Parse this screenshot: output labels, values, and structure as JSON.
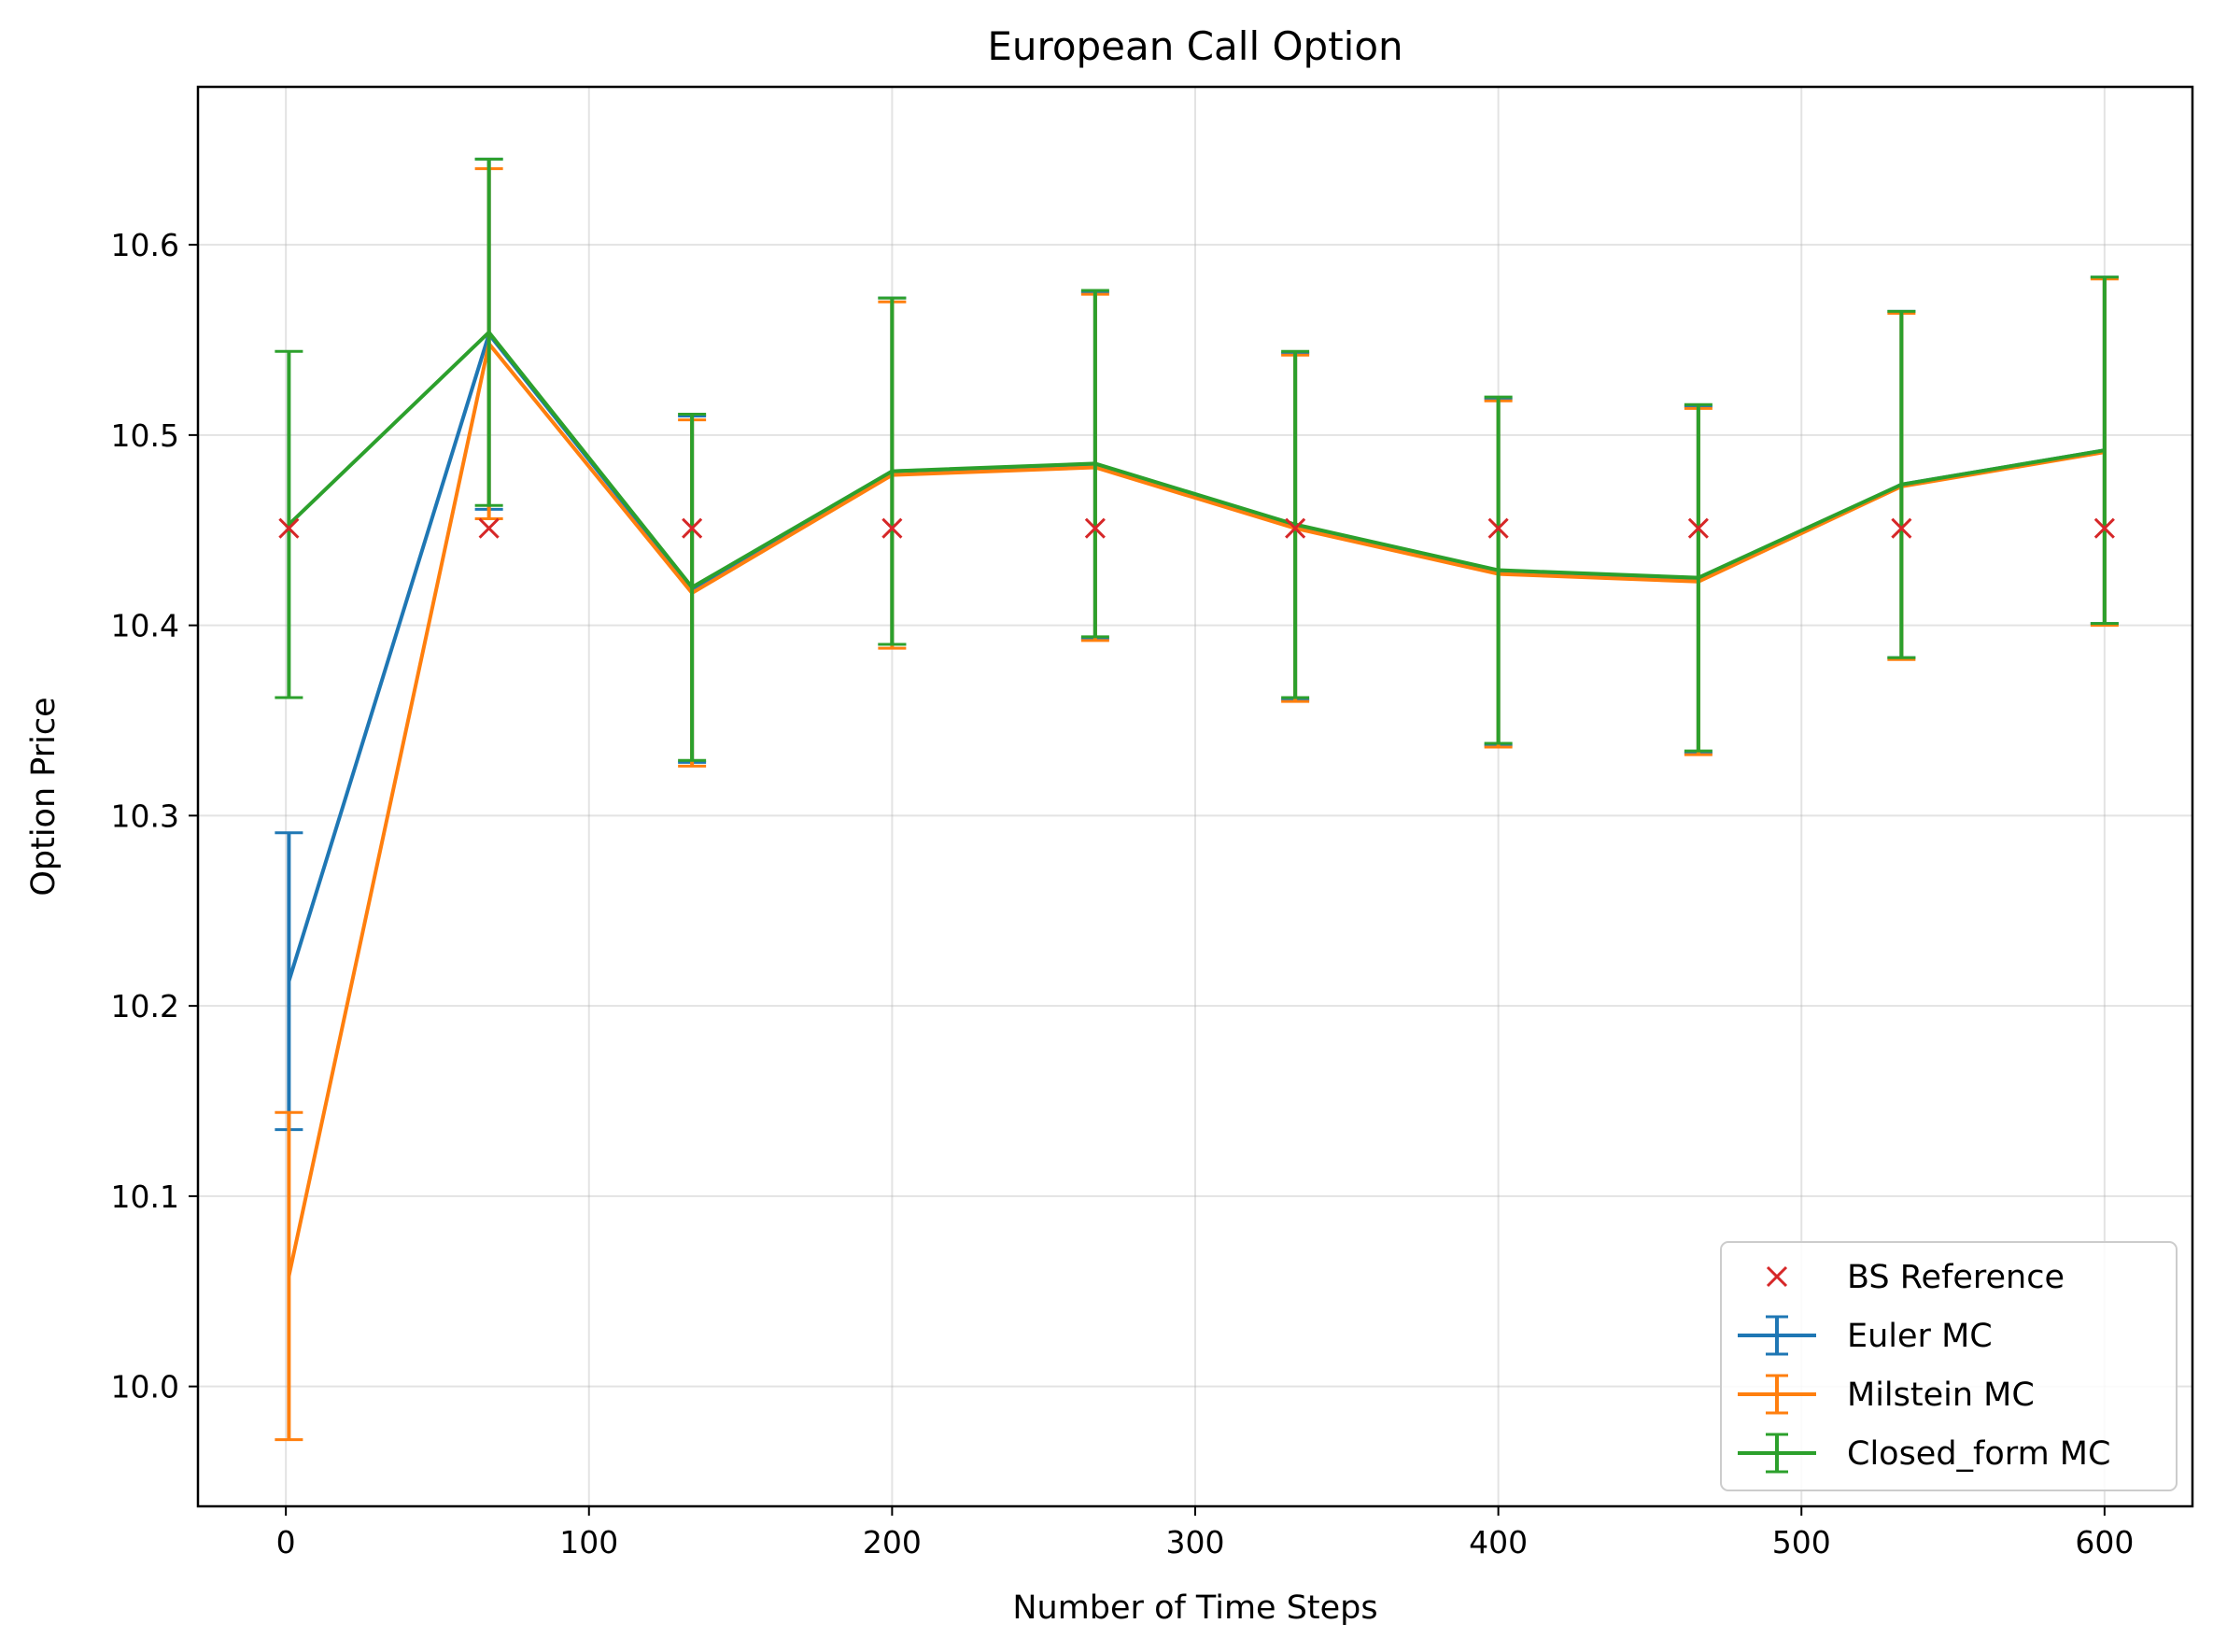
{
  "chart_data": {
    "type": "line",
    "title": "European Call Option",
    "xlabel": "Number of Time Steps",
    "ylabel": "Option Price",
    "xlim": [
      -29,
      629
    ],
    "ylim": [
      9.937,
      10.683
    ],
    "x_ticks": [
      0,
      100,
      200,
      300,
      400,
      500,
      600
    ],
    "x_tick_labels": [
      "0",
      "100",
      "200",
      "300",
      "400",
      "500",
      "600"
    ],
    "y_ticks": [
      10.0,
      10.1,
      10.2,
      10.3,
      10.4,
      10.5,
      10.6
    ],
    "y_tick_labels": [
      "10.0",
      "10.1",
      "10.2",
      "10.3",
      "10.4",
      "10.5",
      "10.6"
    ],
    "grid": true,
    "legend_position": "lower right",
    "x": [
      1,
      67,
      134,
      200,
      267,
      333,
      400,
      466,
      533,
      600
    ],
    "series": [
      {
        "name": "Euler MC",
        "color": "#1f77b4",
        "style": "errorbar",
        "values": [
          10.213,
          10.553,
          10.419,
          10.481,
          10.484,
          10.452,
          10.428,
          10.424,
          10.474,
          10.492
        ],
        "errors": [
          0.078,
          0.092,
          0.091,
          0.091,
          0.091,
          0.091,
          0.091,
          0.091,
          0.091,
          0.091
        ]
      },
      {
        "name": "Milstein MC",
        "color": "#ff7f0e",
        "style": "errorbar",
        "values": [
          10.058,
          10.548,
          10.417,
          10.479,
          10.483,
          10.451,
          10.427,
          10.423,
          10.473,
          10.491
        ],
        "errors": [
          0.086,
          0.092,
          0.091,
          0.091,
          0.091,
          0.091,
          0.091,
          0.091,
          0.091,
          0.091
        ]
      },
      {
        "name": "Closed_form MC",
        "color": "#2ca02c",
        "style": "errorbar",
        "values": [
          10.453,
          10.554,
          10.42,
          10.481,
          10.485,
          10.453,
          10.429,
          10.425,
          10.474,
          10.492
        ],
        "errors": [
          0.091,
          0.091,
          0.091,
          0.091,
          0.091,
          0.091,
          0.091,
          0.091,
          0.091,
          0.091
        ]
      },
      {
        "name": "BS Reference",
        "color": "#d62728",
        "style": "marker-x",
        "values": [
          10.451,
          10.451,
          10.451,
          10.451,
          10.451,
          10.451,
          10.451,
          10.451,
          10.451,
          10.451
        ]
      }
    ],
    "legend_order": [
      "BS Reference",
      "Euler MC",
      "Milstein MC",
      "Closed_form MC"
    ]
  }
}
